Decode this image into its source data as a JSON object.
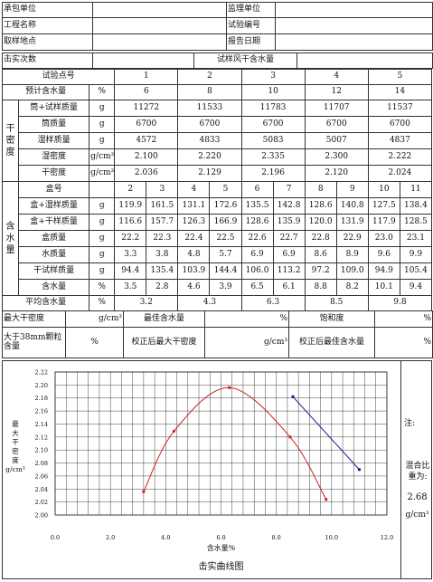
{
  "header": {
    "contractor_label": "承包单位",
    "supervisor_label": "监理单位",
    "project_label": "工程名称",
    "test_no_label": "试验编号",
    "sample_site_label": "取样地点",
    "report_date_label": "报告日期",
    "blows_label": "击实次数",
    "air_dry_label": "试样风干含水量"
  },
  "points": {
    "label": "试验点号",
    "values": [
      "1",
      "2",
      "3",
      "4",
      "5"
    ],
    "est_label": "预计含水量",
    "est_unit": "%",
    "est_values": [
      "6",
      "8",
      "10",
      "12",
      "14"
    ]
  },
  "density": {
    "group": "干密度",
    "rows": [
      {
        "label": "筒+试样质量",
        "unit": "g",
        "values": [
          "11272",
          "11533",
          "11783",
          "11707",
          "11537"
        ]
      },
      {
        "label": "筒质量",
        "unit": "g",
        "values": [
          "6700",
          "6700",
          "6700",
          "6700",
          "6700"
        ]
      },
      {
        "label": "湿样质量",
        "unit": "g",
        "values": [
          "4572",
          "4833",
          "5083",
          "5007",
          "4837"
        ]
      },
      {
        "label": "湿密度",
        "unit": "g/cm³",
        "values": [
          "2.100",
          "2.220",
          "2.335",
          "2.300",
          "2.222"
        ]
      },
      {
        "label": "干密度",
        "unit": "g/cm³",
        "values": [
          "2.036",
          "2.129",
          "2.196",
          "2.120",
          "2.024"
        ]
      }
    ]
  },
  "moisture": {
    "group": "含水量",
    "rows": [
      {
        "label": "盒号",
        "unit": "",
        "values": [
          "2",
          "3",
          "4",
          "5",
          "6",
          "7",
          "8",
          "9",
          "10",
          "11"
        ]
      },
      {
        "label": "盒+湿样质量",
        "unit": "g",
        "values": [
          "119.9",
          "161.5",
          "131.1",
          "172.6",
          "135.5",
          "142.8",
          "128.6",
          "140.8",
          "127.5",
          "138.4"
        ]
      },
      {
        "label": "盒+干样质量",
        "unit": "g",
        "values": [
          "116.6",
          "157.7",
          "126.3",
          "166.9",
          "128.6",
          "135.9",
          "120.0",
          "131.9",
          "117.9",
          "128.5"
        ]
      },
      {
        "label": "盒质量",
        "unit": "g",
        "values": [
          "22.2",
          "22.3",
          "22.4",
          "22.5",
          "22.6",
          "22.7",
          "22.8",
          "22.9",
          "23.0",
          "23.1"
        ]
      },
      {
        "label": "水质量",
        "unit": "g",
        "values": [
          "3.3",
          "3.8",
          "4.8",
          "5.7",
          "6.9",
          "6.9",
          "8.6",
          "8.9",
          "9.6",
          "9.9"
        ]
      },
      {
        "label": "干试样质量",
        "unit": "g",
        "values": [
          "94.4",
          "135.4",
          "103.9",
          "144.4",
          "106.0",
          "113.2",
          "97.2",
          "109.0",
          "94.9",
          "105.4"
        ]
      },
      {
        "label": "含水量",
        "unit": "%",
        "values": [
          "3.5",
          "2.8",
          "4.6",
          "3.9",
          "6.5",
          "6.1",
          "8.8",
          "8.2",
          "10.1",
          "9.4"
        ]
      }
    ],
    "avg_label": "平均含水量",
    "avg_unit": "%",
    "avg_values": [
      "3.2",
      "4.3",
      "6.3",
      "8.5",
      "9.8"
    ]
  },
  "summary": {
    "max_dry_label": "最大干密度",
    "max_dry_unit": "g/cm³",
    "opt_label": "最佳含水量",
    "opt_unit": "%",
    "sat_label": "饱和度",
    "sat_unit": "%",
    "oversize_label": "大于38mm颗粒含量",
    "oversize_unit": "%",
    "corr_dry_label": "校正后最大干密度",
    "corr_dry_unit": "g/cm³",
    "corr_opt_label": "校正后最佳含水量",
    "corr_opt_unit": "%"
  },
  "note": {
    "label": "注:",
    "mix_label": "混合比重为:",
    "mix_value": "2.68",
    "mix_unit": "g/cm³"
  },
  "chart_data": {
    "type": "line",
    "title": "击实曲线图",
    "xlabel": "含水量%",
    "ylabel": "最大干密度g/cm³",
    "xlim": [
      0,
      12
    ],
    "ylim": [
      2.0,
      2.22
    ],
    "xticks": [
      "0.0",
      "2.0",
      "4.0",
      "6.0",
      "8.0",
      "10.0",
      "12.0"
    ],
    "yticks": [
      "2.00",
      "2.02",
      "2.04",
      "2.06",
      "2.08",
      "2.10",
      "2.12",
      "2.14",
      "2.16",
      "2.18",
      "2.20",
      "2.22"
    ],
    "grid": true,
    "series": [
      {
        "color": "#d02020",
        "kind": "smooth-curve",
        "points": [
          [
            3.2,
            2.036
          ],
          [
            4.3,
            2.129
          ],
          [
            6.3,
            2.196
          ],
          [
            8.5,
            2.12
          ],
          [
            9.8,
            2.024
          ]
        ]
      },
      {
        "color": "#1a1a8a",
        "kind": "line",
        "points": [
          [
            8.6,
            2.182
          ],
          [
            11.0,
            2.07
          ]
        ]
      }
    ]
  }
}
